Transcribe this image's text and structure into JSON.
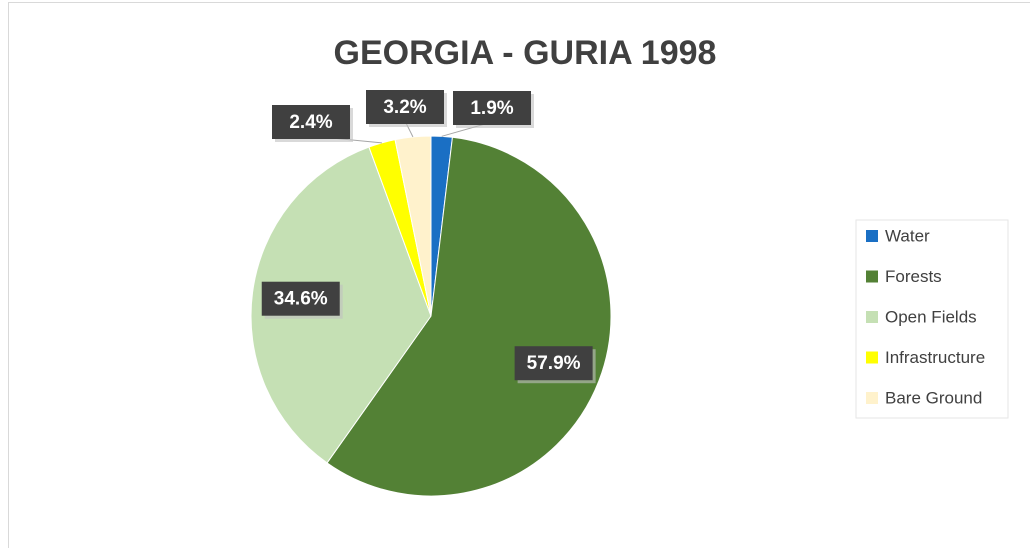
{
  "chart_data": {
    "type": "pie",
    "title": "GEORGIA - GURIA 1998",
    "categories": [
      "Water",
      "Forests",
      "Open Fields",
      "Infrastructure",
      "Bare Ground"
    ],
    "values": [
      1.9,
      57.9,
      34.6,
      2.4,
      3.2
    ],
    "value_labels": [
      "1.9%",
      "57.9%",
      "34.6%",
      "2.4%",
      "3.2%"
    ],
    "colors": [
      "#1a6fc4",
      "#538135",
      "#c5e0b4",
      "#ffff00",
      "#fff2cc"
    ],
    "legend": "right"
  }
}
